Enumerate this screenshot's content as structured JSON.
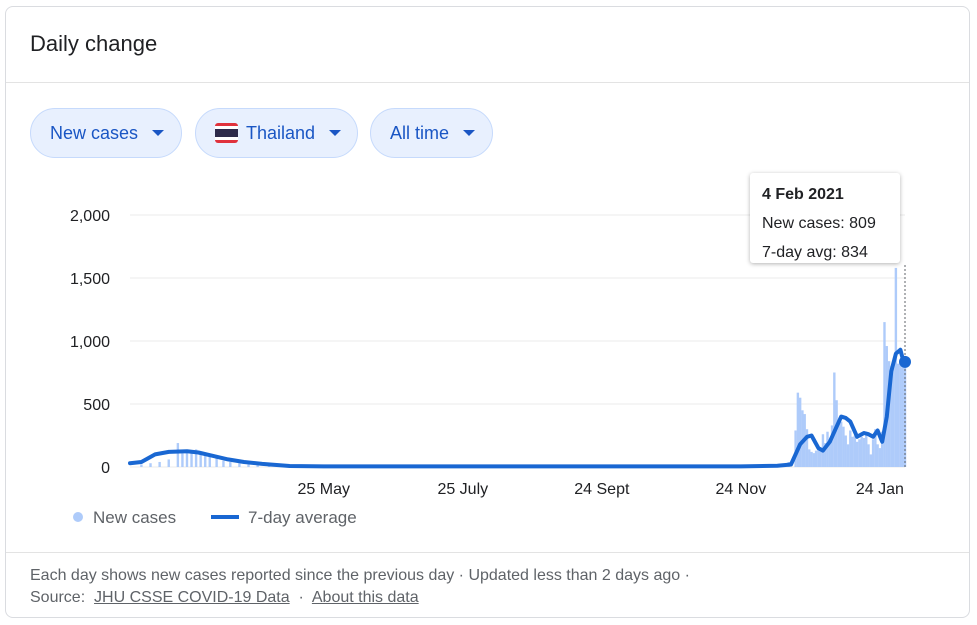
{
  "header": {
    "title": "Daily change"
  },
  "filters": {
    "metric": "New cases",
    "region": "Thailand",
    "range": "All time"
  },
  "colors": {
    "accent": "#1967d2",
    "bar": "#aecbfa",
    "chip_bg": "#e8f0fe",
    "chip_text": "#1a56c4"
  },
  "chart_data": {
    "type": "bar",
    "title": "",
    "xlabel": "",
    "ylabel": "",
    "ylim": [
      0,
      2000
    ],
    "yticks": [
      0,
      500,
      1000,
      1500,
      2000
    ],
    "ytick_labels": [
      "0",
      "500",
      "1,000",
      "1,500",
      "2,000"
    ],
    "xtick_labels": [
      "25 May",
      "25 July",
      "24 Sept",
      "24 Nov",
      "24 Jan"
    ],
    "x_start": "2020-03-01",
    "x_end": "2021-02-04",
    "grid": true,
    "legend_position": "bottom-left",
    "legend": [
      "New cases",
      "7-day average"
    ],
    "series": [
      {
        "name": "New cases",
        "type": "bar",
        "points": [
          [
            "2020-03-06",
            20
          ],
          [
            "2020-03-10",
            30
          ],
          [
            "2020-03-14",
            40
          ],
          [
            "2020-03-18",
            60
          ],
          [
            "2020-03-22",
            190
          ],
          [
            "2020-03-24",
            110
          ],
          [
            "2020-03-26",
            130
          ],
          [
            "2020-03-28",
            110
          ],
          [
            "2020-03-30",
            140
          ],
          [
            "2020-04-01",
            120
          ],
          [
            "2020-04-03",
            110
          ],
          [
            "2020-04-05",
            90
          ],
          [
            "2020-04-08",
            80
          ],
          [
            "2020-04-11",
            50
          ],
          [
            "2020-04-14",
            40
          ],
          [
            "2020-04-18",
            30
          ],
          [
            "2020-04-22",
            20
          ],
          [
            "2020-04-26",
            15
          ],
          [
            "2020-05-01",
            10
          ],
          [
            "2020-05-10",
            6
          ],
          [
            "2020-05-25",
            5
          ],
          [
            "2020-06-15",
            4
          ],
          [
            "2020-07-10",
            5
          ],
          [
            "2020-08-05",
            4
          ],
          [
            "2020-09-01",
            5
          ],
          [
            "2020-09-25",
            5
          ],
          [
            "2020-10-20",
            4
          ],
          [
            "2020-11-15",
            6
          ],
          [
            "2020-12-05",
            10
          ],
          [
            "2020-12-15",
            40
          ],
          [
            "2020-12-18",
            290
          ],
          [
            "2020-12-19",
            590
          ],
          [
            "2020-12-20",
            550
          ],
          [
            "2020-12-21",
            450
          ],
          [
            "2020-12-22",
            420
          ],
          [
            "2020-12-23",
            300
          ],
          [
            "2020-12-24",
            140
          ],
          [
            "2020-12-25",
            120
          ],
          [
            "2020-12-26",
            110
          ],
          [
            "2020-12-27",
            130
          ],
          [
            "2020-12-28",
            150
          ],
          [
            "2020-12-29",
            140
          ],
          [
            "2020-12-30",
            260
          ],
          [
            "2020-12-31",
            190
          ],
          [
            "2021-01-01",
            280
          ],
          [
            "2021-01-02",
            210
          ],
          [
            "2021-01-03",
            330
          ],
          [
            "2021-01-04",
            750
          ],
          [
            "2021-01-05",
            530
          ],
          [
            "2021-01-06",
            370
          ],
          [
            "2021-01-07",
            360
          ],
          [
            "2021-01-08",
            320
          ],
          [
            "2021-01-09",
            250
          ],
          [
            "2021-01-10",
            180
          ],
          [
            "2021-01-11",
            290
          ],
          [
            "2021-01-12",
            240
          ],
          [
            "2021-01-13",
            250
          ],
          [
            "2021-01-14",
            200
          ],
          [
            "2021-01-15",
            220
          ],
          [
            "2021-01-16",
            240
          ],
          [
            "2021-01-17",
            230
          ],
          [
            "2021-01-18",
            280
          ],
          [
            "2021-01-19",
            180
          ],
          [
            "2021-01-20",
            100
          ],
          [
            "2021-01-21",
            220
          ],
          [
            "2021-01-22",
            300
          ],
          [
            "2021-01-23",
            180
          ],
          [
            "2021-01-24",
            150
          ],
          [
            "2021-01-25",
            280
          ],
          [
            "2021-01-26",
            1150
          ],
          [
            "2021-01-27",
            960
          ],
          [
            "2021-01-28",
            840
          ],
          [
            "2021-01-29",
            800
          ],
          [
            "2021-01-30",
            820
          ],
          [
            "2021-01-31",
            1580
          ],
          [
            "2021-02-01",
            820
          ],
          [
            "2021-02-02",
            850
          ],
          [
            "2021-02-03",
            790
          ],
          [
            "2021-02-04",
            809
          ]
        ]
      },
      {
        "name": "7-day average",
        "type": "line",
        "points": [
          [
            "2020-03-01",
            30
          ],
          [
            "2020-03-06",
            40
          ],
          [
            "2020-03-12",
            100
          ],
          [
            "2020-03-18",
            120
          ],
          [
            "2020-03-26",
            125
          ],
          [
            "2020-03-31",
            115
          ],
          [
            "2020-04-06",
            90
          ],
          [
            "2020-04-13",
            60
          ],
          [
            "2020-04-20",
            40
          ],
          [
            "2020-04-28",
            25
          ],
          [
            "2020-05-10",
            8
          ],
          [
            "2020-05-25",
            5
          ],
          [
            "2020-07-25",
            5
          ],
          [
            "2020-09-24",
            5
          ],
          [
            "2020-11-24",
            5
          ],
          [
            "2020-12-10",
            10
          ],
          [
            "2020-12-16",
            20
          ],
          [
            "2020-12-20",
            180
          ],
          [
            "2020-12-23",
            240
          ],
          [
            "2020-12-25",
            250
          ],
          [
            "2020-12-28",
            150
          ],
          [
            "2020-12-30",
            130
          ],
          [
            "2021-01-02",
            200
          ],
          [
            "2021-01-05",
            320
          ],
          [
            "2021-01-07",
            400
          ],
          [
            "2021-01-09",
            390
          ],
          [
            "2021-01-11",
            360
          ],
          [
            "2021-01-14",
            240
          ],
          [
            "2021-01-17",
            270
          ],
          [
            "2021-01-19",
            260
          ],
          [
            "2021-01-21",
            240
          ],
          [
            "2021-01-23",
            290
          ],
          [
            "2021-01-25",
            200
          ],
          [
            "2021-01-27",
            400
          ],
          [
            "2021-01-29",
            760
          ],
          [
            "2021-01-31",
            900
          ],
          [
            "2021-02-02",
            930
          ],
          [
            "2021-02-03",
            860
          ],
          [
            "2021-02-04",
            834
          ]
        ]
      }
    ],
    "tooltip": {
      "date": "4 Feb 2021",
      "new_cases_label": "New cases: 809",
      "avg_label": "7-day avg: 834"
    }
  },
  "footer": {
    "line1": "Each day shows new cases reported since the previous day · Updated less than 2 days ago  ·",
    "source_label": "Source:",
    "source_link": "JHU CSSE COVID-19 Data",
    "separator": "·",
    "about_link": "About this data"
  }
}
